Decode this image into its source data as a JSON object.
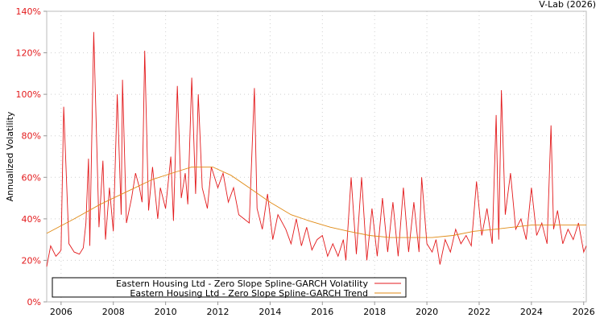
{
  "chart_data": {
    "type": "line",
    "title": "",
    "credit": "V-Lab (2026)",
    "xlabel": "",
    "ylabel": "Annualized Volatility",
    "xlim": [
      2005.45,
      2026.1
    ],
    "ylim": [
      0,
      140
    ],
    "x_ticks": [
      2006,
      2008,
      2010,
      2012,
      2014,
      2016,
      2018,
      2020,
      2022,
      2024,
      2026
    ],
    "x_tick_labels": [
      "2006",
      "2008",
      "2010",
      "2012",
      "2014",
      "2016",
      "2018",
      "2020",
      "2022",
      "2024",
      "2026"
    ],
    "y_ticks": [
      0,
      20,
      40,
      60,
      80,
      100,
      120,
      140
    ],
    "y_tick_labels": [
      "0%",
      "20%",
      "40%",
      "60%",
      "80%",
      "100%",
      "120%",
      "140%"
    ],
    "grid": true,
    "legend_position": "bottom-left",
    "series": [
      {
        "name": "Eastern Housing Ltd - Zero Slope Spline-GARCH Volatility",
        "color": "#e31a1c",
        "x": [
          2005.45,
          2005.6,
          2005.8,
          2005.95,
          2006.0,
          2006.1,
          2006.3,
          2006.5,
          2006.7,
          2006.85,
          2006.95,
          2007.05,
          2007.1,
          2007.25,
          2007.45,
          2007.6,
          2007.7,
          2007.85,
          2008.0,
          2008.15,
          2008.3,
          2008.35,
          2008.5,
          2008.7,
          2008.85,
          2009.0,
          2009.1,
          2009.2,
          2009.35,
          2009.5,
          2009.7,
          2009.8,
          2010.0,
          2010.2,
          2010.3,
          2010.45,
          2010.6,
          2010.75,
          2010.85,
          2011.0,
          2011.15,
          2011.25,
          2011.4,
          2011.6,
          2011.75,
          2012.0,
          2012.2,
          2012.4,
          2012.6,
          2012.8,
          2013.0,
          2013.2,
          2013.4,
          2013.5,
          2013.7,
          2013.9,
          2014.1,
          2014.3,
          2014.6,
          2014.8,
          2015.0,
          2015.2,
          2015.4,
          2015.6,
          2015.8,
          2016.0,
          2016.2,
          2016.4,
          2016.6,
          2016.8,
          2016.9,
          2017.1,
          2017.3,
          2017.5,
          2017.7,
          2017.9,
          2018.1,
          2018.3,
          2018.5,
          2018.7,
          2018.9,
          2019.1,
          2019.3,
          2019.5,
          2019.7,
          2019.8,
          2020.0,
          2020.2,
          2020.35,
          2020.5,
          2020.7,
          2020.9,
          2021.1,
          2021.3,
          2021.5,
          2021.7,
          2021.9,
          2022.1,
          2022.3,
          2022.5,
          2022.65,
          2022.75,
          2022.85,
          2023.0,
          2023.2,
          2023.4,
          2023.6,
          2023.8,
          2024.0,
          2024.2,
          2024.4,
          2024.6,
          2024.75,
          2024.85,
          2025.0,
          2025.2,
          2025.4,
          2025.6,
          2025.8,
          2026.0,
          2026.1
        ],
        "values": [
          17,
          27,
          22,
          24,
          25,
          94,
          28,
          24,
          23,
          26,
          38,
          69,
          27,
          130,
          36,
          68,
          30,
          55,
          34,
          100,
          42,
          107,
          38,
          50,
          62,
          55,
          48,
          121,
          44,
          65,
          40,
          55,
          45,
          70,
          39,
          104,
          50,
          62,
          47,
          108,
          52,
          100,
          55,
          45,
          65,
          55,
          62,
          48,
          55,
          42,
          40,
          38,
          103,
          45,
          35,
          52,
          30,
          42,
          35,
          28,
          40,
          27,
          36,
          25,
          30,
          32,
          22,
          28,
          22,
          30,
          20,
          60,
          23,
          60,
          20,
          45,
          22,
          50,
          24,
          48,
          22,
          55,
          24,
          48,
          24,
          60,
          28,
          24,
          30,
          18,
          30,
          24,
          35,
          28,
          32,
          27,
          58,
          32,
          45,
          28,
          90,
          30,
          102,
          42,
          62,
          35,
          40,
          30,
          55,
          32,
          38,
          28,
          85,
          35,
          44,
          28,
          35,
          30,
          38,
          24,
          27
        ],
        "data_labels": []
      },
      {
        "name": "Eastern Housing Ltd - Zero Slope Spline-GARCH Trend",
        "color": "#e08a14",
        "x": [
          2005.45,
          2006.5,
          2007.5,
          2008.5,
          2009.5,
          2010.5,
          2011.0,
          2011.8,
          2012.5,
          2013.2,
          2014.0,
          2014.8,
          2015.5,
          2016.3,
          2017.0,
          2017.8,
          2018.6,
          2019.4,
          2020.2,
          2021.0,
          2021.8,
          2022.6,
          2023.3,
          2024.0,
          2024.8,
          2025.5,
          2026.1
        ],
        "values": [
          33,
          40,
          47,
          53,
          59,
          63,
          65,
          65,
          61,
          55,
          48,
          42,
          39,
          36,
          34,
          32,
          31,
          31,
          31,
          32,
          34,
          35,
          36,
          37,
          37,
          37,
          37
        ],
        "data_labels": []
      }
    ]
  }
}
